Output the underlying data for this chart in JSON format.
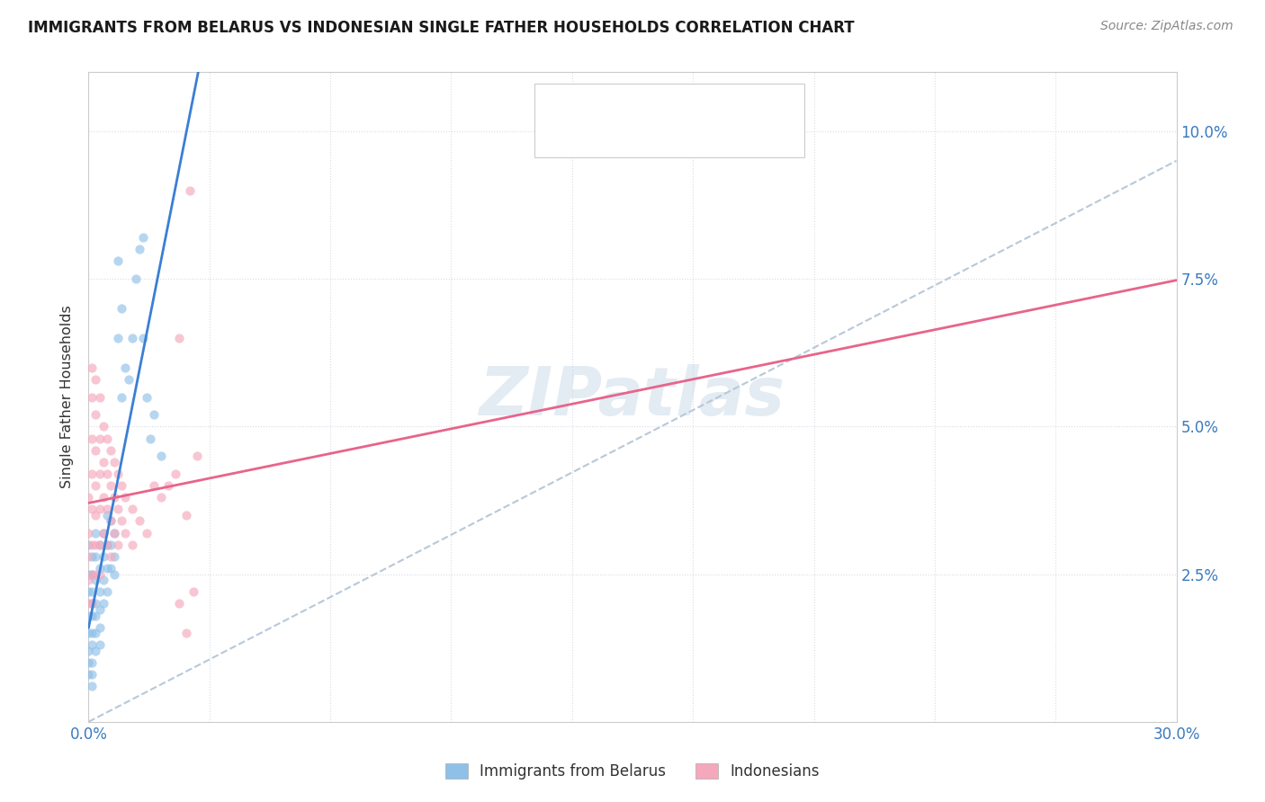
{
  "title": "IMMIGRANTS FROM BELARUS VS INDONESIAN SINGLE FATHER HOUSEHOLDS CORRELATION CHART",
  "source": "Source: ZipAtlas.com",
  "ylabel": "Single Father Households",
  "yticks": [
    "2.5%",
    "5.0%",
    "7.5%",
    "10.0%"
  ],
  "ytick_vals": [
    0.025,
    0.05,
    0.075,
    0.1
  ],
  "xmin": 0.0,
  "xmax": 0.3,
  "ymin": 0.0,
  "ymax": 0.11,
  "color_belarus": "#8fc0e8",
  "color_indonesian": "#f5a8bc",
  "color_trendline_belarus": "#3a7fd4",
  "color_trendline_indonesian": "#e8648a",
  "color_dashed_line": "#b8c8d8",
  "watermark": "ZIPatlas",
  "legend_label1": "Immigrants from Belarus",
  "legend_label2": "Indonesians",
  "scatter_size": 55,
  "scatter_alpha": 0.65,
  "belarus_scatter": [
    [
      0.0,
      0.03
    ],
    [
      0.0,
      0.025
    ],
    [
      0.0,
      0.022
    ],
    [
      0.0,
      0.018
    ],
    [
      0.0,
      0.015
    ],
    [
      0.0,
      0.012
    ],
    [
      0.0,
      0.01
    ],
    [
      0.0,
      0.008
    ],
    [
      0.001,
      0.028
    ],
    [
      0.001,
      0.025
    ],
    [
      0.001,
      0.022
    ],
    [
      0.001,
      0.02
    ],
    [
      0.001,
      0.018
    ],
    [
      0.001,
      0.015
    ],
    [
      0.001,
      0.013
    ],
    [
      0.001,
      0.01
    ],
    [
      0.001,
      0.008
    ],
    [
      0.001,
      0.006
    ],
    [
      0.002,
      0.032
    ],
    [
      0.002,
      0.028
    ],
    [
      0.002,
      0.024
    ],
    [
      0.002,
      0.02
    ],
    [
      0.002,
      0.018
    ],
    [
      0.002,
      0.015
    ],
    [
      0.002,
      0.012
    ],
    [
      0.003,
      0.03
    ],
    [
      0.003,
      0.026
    ],
    [
      0.003,
      0.022
    ],
    [
      0.003,
      0.019
    ],
    [
      0.003,
      0.016
    ],
    [
      0.003,
      0.013
    ],
    [
      0.004,
      0.032
    ],
    [
      0.004,
      0.028
    ],
    [
      0.004,
      0.024
    ],
    [
      0.004,
      0.02
    ],
    [
      0.005,
      0.035
    ],
    [
      0.005,
      0.03
    ],
    [
      0.005,
      0.026
    ],
    [
      0.005,
      0.022
    ],
    [
      0.006,
      0.034
    ],
    [
      0.006,
      0.03
    ],
    [
      0.006,
      0.026
    ],
    [
      0.007,
      0.032
    ],
    [
      0.007,
      0.028
    ],
    [
      0.007,
      0.025
    ],
    [
      0.008,
      0.078
    ],
    [
      0.008,
      0.065
    ],
    [
      0.009,
      0.07
    ],
    [
      0.009,
      0.055
    ],
    [
      0.01,
      0.06
    ],
    [
      0.011,
      0.058
    ],
    [
      0.012,
      0.065
    ],
    [
      0.013,
      0.075
    ],
    [
      0.014,
      0.08
    ],
    [
      0.015,
      0.082
    ],
    [
      0.015,
      0.065
    ],
    [
      0.016,
      0.055
    ],
    [
      0.017,
      0.048
    ],
    [
      0.018,
      0.052
    ],
    [
      0.02,
      0.045
    ]
  ],
  "indonesian_scatter": [
    [
      0.0,
      0.038
    ],
    [
      0.0,
      0.032
    ],
    [
      0.0,
      0.028
    ],
    [
      0.0,
      0.024
    ],
    [
      0.0,
      0.02
    ],
    [
      0.001,
      0.06
    ],
    [
      0.001,
      0.055
    ],
    [
      0.001,
      0.048
    ],
    [
      0.001,
      0.042
    ],
    [
      0.001,
      0.036
    ],
    [
      0.001,
      0.03
    ],
    [
      0.001,
      0.025
    ],
    [
      0.001,
      0.02
    ],
    [
      0.002,
      0.058
    ],
    [
      0.002,
      0.052
    ],
    [
      0.002,
      0.046
    ],
    [
      0.002,
      0.04
    ],
    [
      0.002,
      0.035
    ],
    [
      0.002,
      0.03
    ],
    [
      0.002,
      0.025
    ],
    [
      0.003,
      0.055
    ],
    [
      0.003,
      0.048
    ],
    [
      0.003,
      0.042
    ],
    [
      0.003,
      0.036
    ],
    [
      0.003,
      0.03
    ],
    [
      0.003,
      0.025
    ],
    [
      0.004,
      0.05
    ],
    [
      0.004,
      0.044
    ],
    [
      0.004,
      0.038
    ],
    [
      0.004,
      0.032
    ],
    [
      0.005,
      0.048
    ],
    [
      0.005,
      0.042
    ],
    [
      0.005,
      0.036
    ],
    [
      0.005,
      0.03
    ],
    [
      0.006,
      0.046
    ],
    [
      0.006,
      0.04
    ],
    [
      0.006,
      0.034
    ],
    [
      0.006,
      0.028
    ],
    [
      0.007,
      0.044
    ],
    [
      0.007,
      0.038
    ],
    [
      0.007,
      0.032
    ],
    [
      0.008,
      0.042
    ],
    [
      0.008,
      0.036
    ],
    [
      0.008,
      0.03
    ],
    [
      0.009,
      0.04
    ],
    [
      0.009,
      0.034
    ],
    [
      0.01,
      0.038
    ],
    [
      0.01,
      0.032
    ],
    [
      0.012,
      0.036
    ],
    [
      0.012,
      0.03
    ],
    [
      0.014,
      0.034
    ],
    [
      0.016,
      0.032
    ],
    [
      0.018,
      0.04
    ],
    [
      0.02,
      0.038
    ],
    [
      0.022,
      0.04
    ],
    [
      0.024,
      0.042
    ],
    [
      0.025,
      0.065
    ],
    [
      0.025,
      0.02
    ],
    [
      0.027,
      0.035
    ],
    [
      0.027,
      0.015
    ],
    [
      0.028,
      0.09
    ],
    [
      0.029,
      0.022
    ],
    [
      0.03,
      0.045
    ]
  ]
}
